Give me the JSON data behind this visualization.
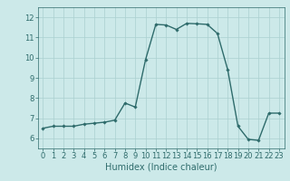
{
  "x": [
    0,
    1,
    2,
    3,
    4,
    5,
    6,
    7,
    8,
    9,
    10,
    11,
    12,
    13,
    14,
    15,
    16,
    17,
    18,
    19,
    20,
    21,
    22,
    23
  ],
  "y": [
    6.5,
    6.6,
    6.6,
    6.6,
    6.7,
    6.75,
    6.8,
    6.9,
    7.75,
    7.55,
    9.9,
    11.65,
    11.62,
    11.4,
    11.7,
    11.68,
    11.65,
    11.2,
    9.4,
    6.6,
    5.95,
    5.9,
    7.25,
    7.25
  ],
  "line_color": "#2e6b6b",
  "marker": "D",
  "marker_size": 1.8,
  "bg_color": "#cce9e9",
  "grid_color": "#aad0d0",
  "xlabel": "Humidex (Indice chaleur)",
  "ylim": [
    5.5,
    12.5
  ],
  "xlim": [
    -0.5,
    23.5
  ],
  "yticks": [
    6,
    7,
    8,
    9,
    10,
    11,
    12
  ],
  "xticks": [
    0,
    1,
    2,
    3,
    4,
    5,
    6,
    7,
    8,
    9,
    10,
    11,
    12,
    13,
    14,
    15,
    16,
    17,
    18,
    19,
    20,
    21,
    22,
    23
  ],
  "tick_color": "#2e6b6b",
  "font_color": "#2e6b6b",
  "xlabel_fontsize": 7,
  "tick_fontsize": 6,
  "line_width": 1.0
}
